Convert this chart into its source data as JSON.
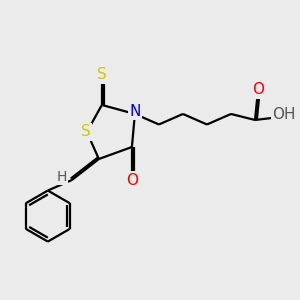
{
  "bg_color": "#ebebeb",
  "atom_colors": {
    "S": "#cccc00",
    "N": "#0000ff",
    "O": "#ff0000",
    "H": "#555555"
  },
  "bond_color": "#000000",
  "bond_width": 1.6,
  "font_size": 11,
  "font_size_H": 10
}
